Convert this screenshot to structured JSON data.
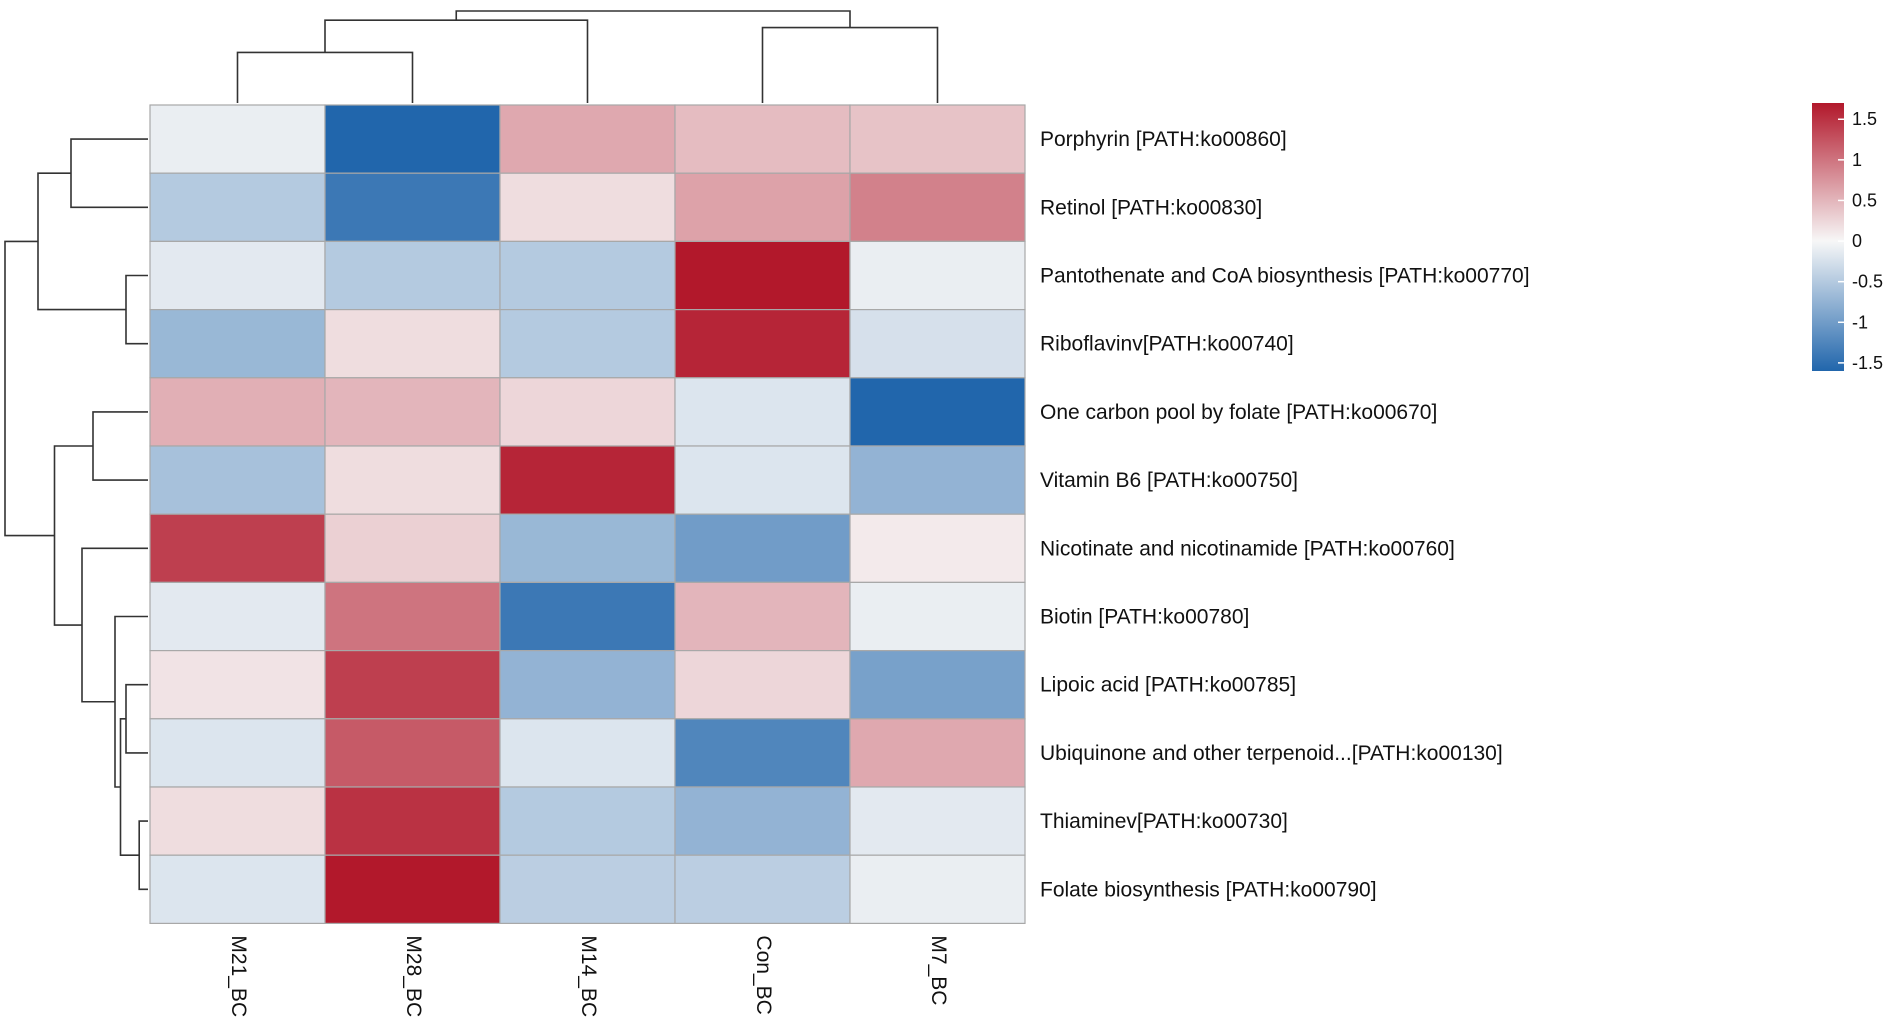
{
  "chart_data": {
    "type": "heatmap",
    "title": "",
    "columns": [
      "M21_BC",
      "M28_BC",
      "M14_BC",
      "Con_BC",
      "M7_BC"
    ],
    "rows": [
      "Porphyrin [PATH:ko00860]",
      "Retinol [PATH:ko00830]",
      "Pantothenate and CoA biosynthesis [PATH:ko00770]",
      "Riboflavinv[PATH:ko00740]",
      "One carbon pool by folate [PATH:ko00670]",
      "Vitamin B6 [PATH:ko00750]",
      "Nicotinate and nicotinamide [PATH:ko00760]",
      "Biotin [PATH:ko00780]",
      "Lipoic acid [PATH:ko00785]",
      "Ubiquinone and other terpenoid...[PATH:ko00130]",
      "Thiaminev[PATH:ko00730]",
      "Folate biosynthesis [PATH:ko00790]"
    ],
    "values": [
      [
        -0.1,
        -1.6,
        0.6,
        0.45,
        0.4
      ],
      [
        -0.5,
        -1.4,
        0.2,
        0.65,
        0.9
      ],
      [
        -0.15,
        -0.5,
        -0.5,
        1.7,
        -0.1
      ],
      [
        -0.7,
        0.2,
        -0.5,
        1.6,
        -0.25
      ],
      [
        0.55,
        0.5,
        0.25,
        -0.2,
        -1.65
      ],
      [
        -0.6,
        0.2,
        1.6,
        -0.2,
        -0.75
      ],
      [
        1.4,
        0.3,
        -0.7,
        -1.0,
        0.1
      ],
      [
        -0.15,
        1.0,
        -1.4,
        0.5,
        -0.1
      ],
      [
        0.15,
        1.4,
        -0.75,
        0.25,
        -0.95
      ],
      [
        -0.2,
        1.2,
        -0.2,
        -1.25,
        0.6
      ],
      [
        0.2,
        1.5,
        -0.5,
        -0.75,
        -0.15
      ],
      [
        -0.2,
        1.75,
        -0.45,
        -0.45,
        -0.1
      ]
    ],
    "colorbar": {
      "ticks": [
        "1.5",
        "1",
        "0.5",
        "0",
        "-0.5",
        "-1",
        "-1.5"
      ],
      "range": [
        -1.6,
        1.7
      ],
      "colors": {
        "low": "#2166ac",
        "mid": "#f7f7f7",
        "high": "#b2182b"
      }
    },
    "dendrogram": {
      "column_order": [
        "M21_BC",
        "M28_BC",
        "M14_BC",
        "Con_BC",
        "M7_BC"
      ],
      "column_merges": [
        [
          0,
          1,
          0.55
        ],
        [
          3,
          4,
          0.82
        ],
        [
          2,
          5,
          0.9
        ],
        [
          6,
          7,
          1.0
        ]
      ],
      "row_merges": [
        [
          10,
          11,
          0.08
        ],
        [
          2,
          3,
          0.2
        ],
        [
          8,
          9,
          0.2
        ],
        [
          4,
          5,
          0.5
        ],
        [
          12,
          14,
          0.25
        ],
        [
          7,
          16,
          0.3
        ],
        [
          6,
          17,
          0.6
        ],
        [
          0,
          1,
          0.7
        ],
        [
          15,
          18,
          0.85
        ],
        [
          13,
          19,
          1.0
        ],
        [
          20,
          21,
          1.3
        ]
      ]
    }
  }
}
